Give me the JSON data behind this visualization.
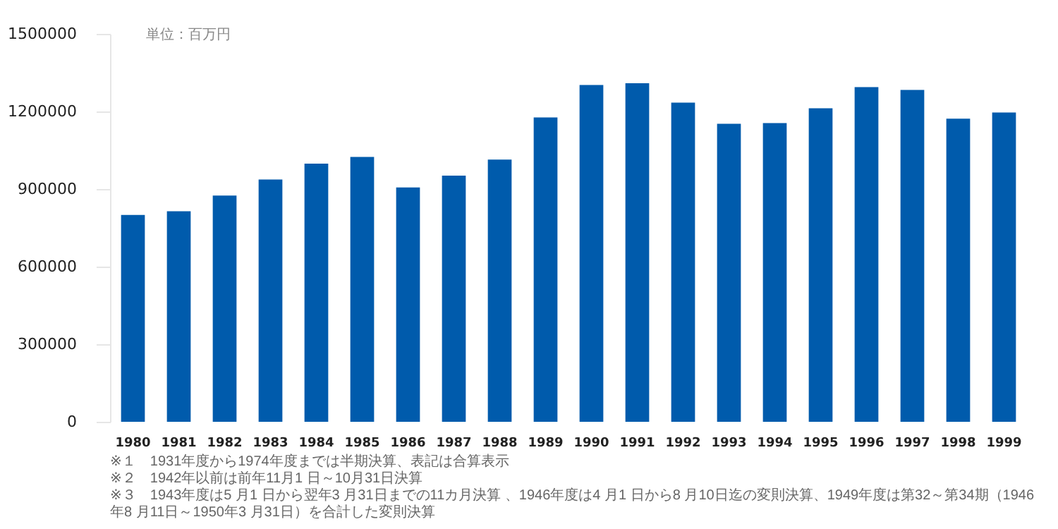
{
  "chart_data": {
    "type": "bar",
    "ylabel": "単位：百万円",
    "categories": [
      "1980",
      "1981",
      "1982",
      "1983",
      "1984",
      "1985",
      "1986",
      "1987",
      "1988",
      "1989",
      "1990",
      "1991",
      "1992",
      "1993",
      "1994",
      "1995",
      "1996",
      "1997",
      "1998",
      "1999"
    ],
    "values": [
      800000,
      814000,
      875000,
      937000,
      998000,
      1024000,
      906000,
      952000,
      1014000,
      1177000,
      1302000,
      1309000,
      1234000,
      1152000,
      1155000,
      1212000,
      1294000,
      1283000,
      1172000,
      1196000
    ],
    "color": "#005bac",
    "ylim": [
      0,
      1500000
    ],
    "yticks": [
      0,
      300000,
      600000,
      900000,
      1200000,
      1500000
    ],
    "grid": false,
    "annotations": [
      "※１　1931年度から1974年度までは半期決算、表記は合算表示",
      "※２　1942年以前は前年11月1 日～10月31日決算",
      "※３　1943年度は5 月1 日から翌年3 月31日までの11カ月決算 、1946年度は4 月1 日から8 月10日迄の変則決算、1949年度は第32～第34期（1946年8 月11日～1950年3 月31日）を合計した変則決算"
    ]
  }
}
